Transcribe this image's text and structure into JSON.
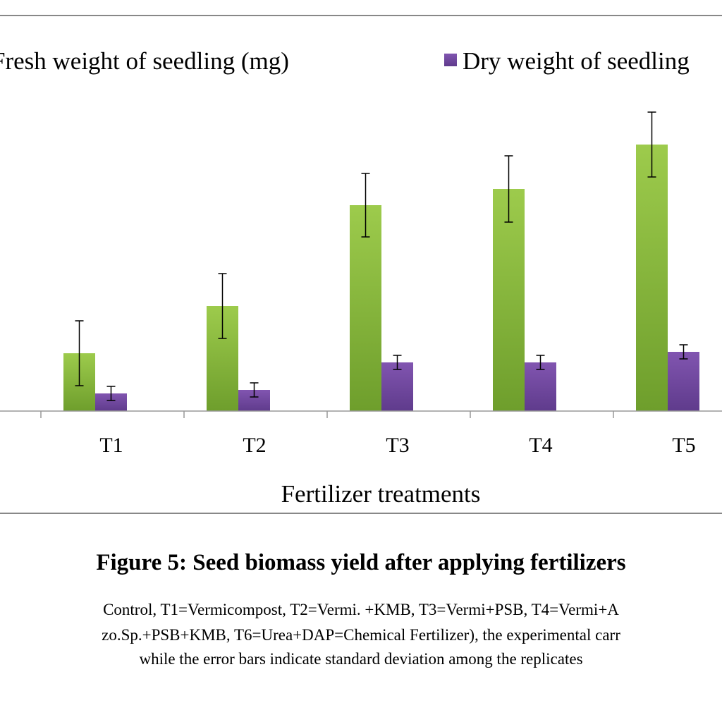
{
  "chart_data": {
    "type": "bar",
    "categories": [
      "T1",
      "T2",
      "T3",
      "T4",
      "T5"
    ],
    "series": [
      {
        "name": "Fresh weight of seedling (mg)",
        "values": [
          82,
          149,
          292,
          315,
          378
        ],
        "error": [
          46,
          46,
          45,
          47,
          46
        ],
        "color": "#8cbf3f"
      },
      {
        "name": "Dry weight of seedling",
        "values": [
          25,
          30,
          69,
          69,
          84
        ],
        "error": [
          10,
          10,
          10,
          10,
          10
        ],
        "color": "#7048a0"
      }
    ],
    "xlabel": "Fertilizer treatments",
    "ylabel": "",
    "ylim": [
      0,
      420
    ],
    "grid": false,
    "legend": "top",
    "error_bars": "standard deviation"
  },
  "caption": {
    "title": "Figure 5: Seed biomass yield after applying fertilizers",
    "line1": "Control, T1=Vermicompost, T2=Vermi. +KMB, T3=Vermi+PSB, T4=Vermi+A",
    "line2": "zo.Sp.+PSB+KMB, T6=Urea+DAP=Chemical Fertilizer), the experimental carr",
    "line3": "while the error bars indicate standard deviation among the replicates"
  }
}
